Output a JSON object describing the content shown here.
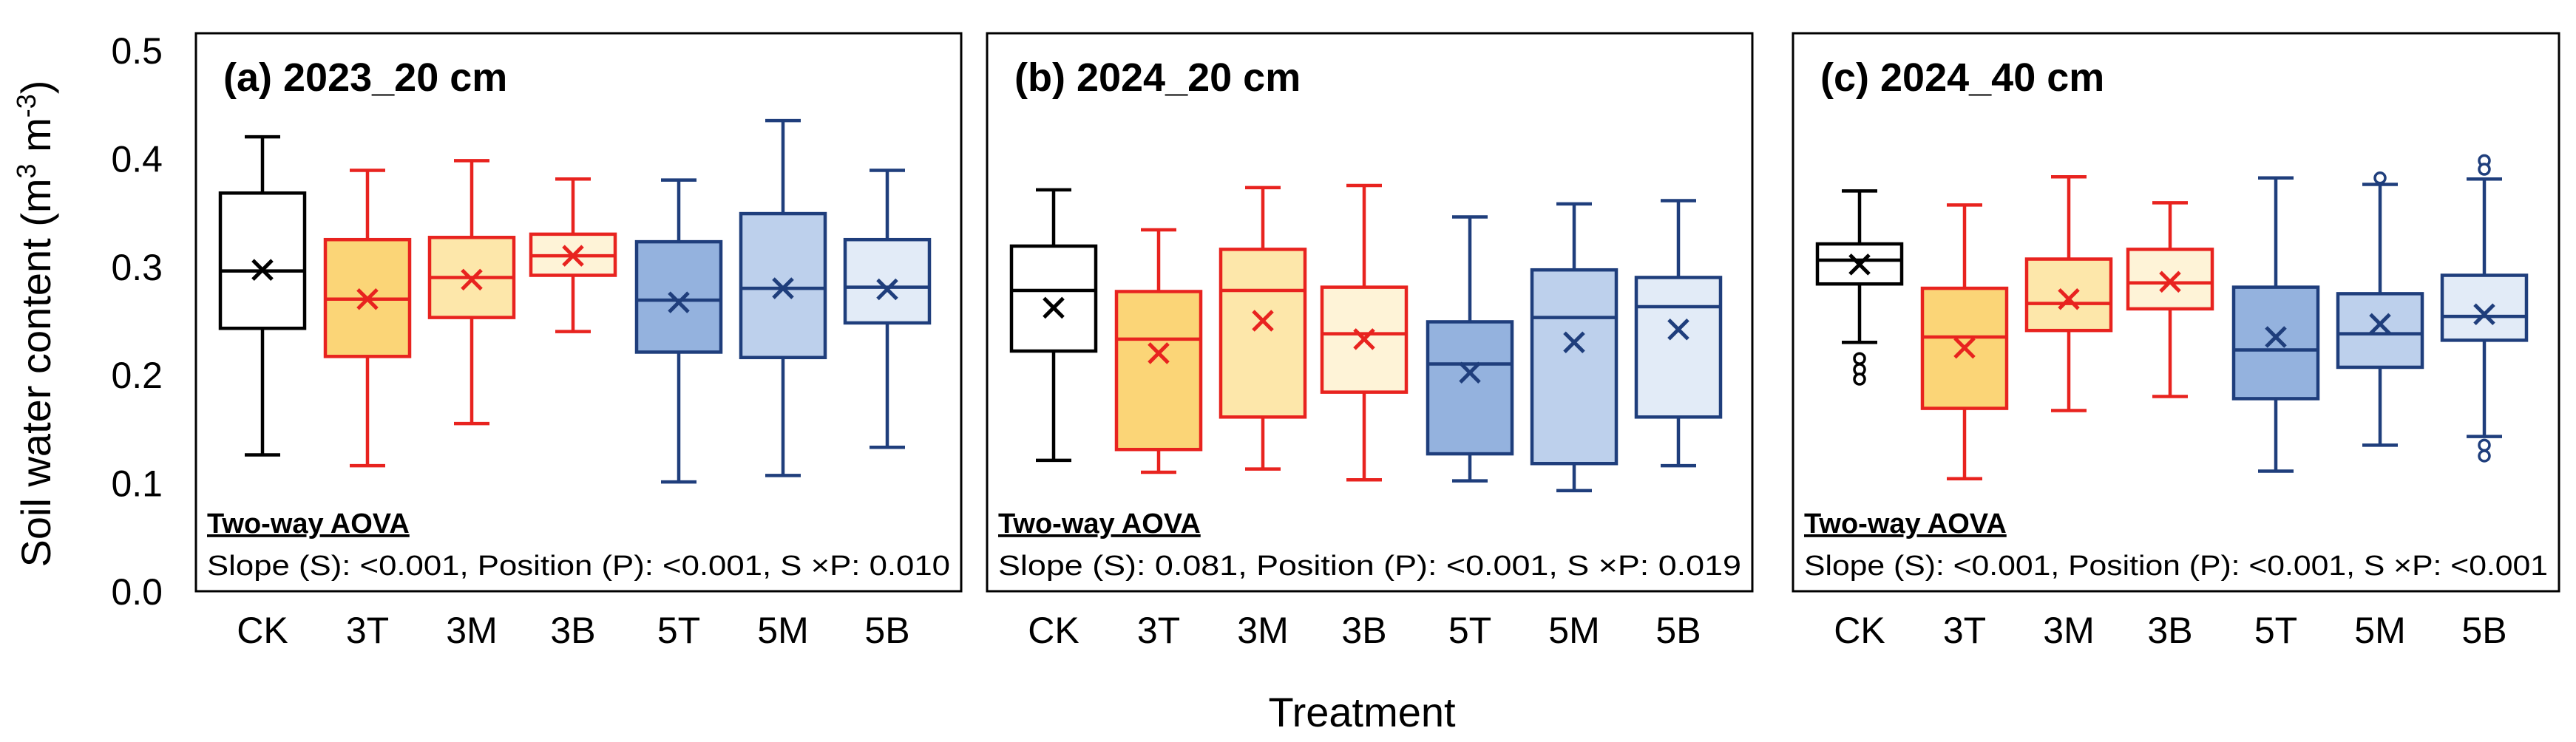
{
  "figure": {
    "y_axis_label": "Soil water content (m",
    "y_axis_unit_sup1": "3",
    "y_axis_unit_mid": " m",
    "y_axis_unit_sup2": "-3",
    "y_axis_unit_close": ")",
    "x_axis_label": "Treatment",
    "y_ticks": [
      "0.0",
      "0.1",
      "0.2",
      "0.3",
      "0.4",
      "0.5"
    ]
  },
  "styles": {
    "CK": {
      "stroke": "#000000",
      "fill": "#ffffff"
    },
    "3T": {
      "stroke": "#e8231f",
      "fill": "#fbd577"
    },
    "3M": {
      "stroke": "#e8231f",
      "fill": "#fde7aa"
    },
    "3B": {
      "stroke": "#e8231f",
      "fill": "#fef3d7"
    },
    "5T": {
      "stroke": "#1f3e7c",
      "fill": "#94b2de"
    },
    "5M": {
      "stroke": "#1f3e7c",
      "fill": "#bdd0ec"
    },
    "5B": {
      "stroke": "#1f3e7c",
      "fill": "#e2ebf7"
    }
  },
  "chart_data": [
    {
      "type": "box",
      "title": "(a) 2023_20 cm",
      "categories": [
        "CK",
        "3T",
        "3M",
        "3B",
        "5T",
        "5M",
        "5B"
      ],
      "ylim": [
        0.0,
        0.5
      ],
      "boxes": [
        {
          "name": "CK",
          "whisker_low": 0.126,
          "q1": 0.243,
          "median": 0.296,
          "q3": 0.368,
          "whisker_high": 0.42,
          "mean": 0.297,
          "outliers": []
        },
        {
          "name": "3T",
          "whisker_low": 0.116,
          "q1": 0.217,
          "median": 0.27,
          "q3": 0.325,
          "whisker_high": 0.389,
          "mean": 0.27,
          "outliers": []
        },
        {
          "name": "3M",
          "whisker_low": 0.155,
          "q1": 0.253,
          "median": 0.29,
          "q3": 0.327,
          "whisker_high": 0.398,
          "mean": 0.288,
          "outliers": []
        },
        {
          "name": "3B",
          "whisker_low": 0.24,
          "q1": 0.292,
          "median": 0.31,
          "q3": 0.33,
          "whisker_high": 0.381,
          "mean": 0.31,
          "outliers": []
        },
        {
          "name": "5T",
          "whisker_low": 0.101,
          "q1": 0.221,
          "median": 0.269,
          "q3": 0.323,
          "whisker_high": 0.38,
          "mean": 0.267,
          "outliers": []
        },
        {
          "name": "5M",
          "whisker_low": 0.107,
          "q1": 0.216,
          "median": 0.28,
          "q3": 0.349,
          "whisker_high": 0.435,
          "mean": 0.28,
          "outliers": []
        },
        {
          "name": "5B",
          "whisker_low": 0.133,
          "q1": 0.248,
          "median": 0.281,
          "q3": 0.325,
          "whisker_high": 0.389,
          "mean": 0.279,
          "outliers": []
        }
      ],
      "anova_title": "Two-way AOVA",
      "anova_text": "Slope (S): <0.001, Position (P): <0.001, S ×P: 0.010"
    },
    {
      "type": "box",
      "title": "(b) 2024_20 cm",
      "categories": [
        "CK",
        "3T",
        "3M",
        "3B",
        "5T",
        "5M",
        "5B"
      ],
      "ylim": [
        0.0,
        0.5
      ],
      "boxes": [
        {
          "name": "CK",
          "whisker_low": 0.121,
          "q1": 0.222,
          "median": 0.278,
          "q3": 0.319,
          "whisker_high": 0.371,
          "mean": 0.262,
          "outliers": []
        },
        {
          "name": "3T",
          "whisker_low": 0.11,
          "q1": 0.131,
          "median": 0.233,
          "q3": 0.277,
          "whisker_high": 0.334,
          "mean": 0.22,
          "outliers": []
        },
        {
          "name": "3M",
          "whisker_low": 0.113,
          "q1": 0.161,
          "median": 0.278,
          "q3": 0.316,
          "whisker_high": 0.373,
          "mean": 0.25,
          "outliers": []
        },
        {
          "name": "3B",
          "whisker_low": 0.103,
          "q1": 0.184,
          "median": 0.238,
          "q3": 0.281,
          "whisker_high": 0.375,
          "mean": 0.233,
          "outliers": []
        },
        {
          "name": "5T",
          "whisker_low": 0.102,
          "q1": 0.127,
          "median": 0.21,
          "q3": 0.249,
          "whisker_high": 0.346,
          "mean": 0.202,
          "outliers": []
        },
        {
          "name": "5M",
          "whisker_low": 0.093,
          "q1": 0.118,
          "median": 0.253,
          "q3": 0.297,
          "whisker_high": 0.358,
          "mean": 0.23,
          "outliers": []
        },
        {
          "name": "5B",
          "whisker_low": 0.116,
          "q1": 0.161,
          "median": 0.263,
          "q3": 0.29,
          "whisker_high": 0.361,
          "mean": 0.242,
          "outliers": []
        }
      ],
      "anova_title": "Two-way AOVA",
      "anova_text": "Slope (S): 0.081, Position (P): <0.001, S ×P: 0.019"
    },
    {
      "type": "box",
      "title": "(c) 2024_40 cm",
      "categories": [
        "CK",
        "3T",
        "3M",
        "3B",
        "5T",
        "5M",
        "5B"
      ],
      "ylim": [
        0.0,
        0.5
      ],
      "boxes": [
        {
          "name": "CK",
          "whisker_low": 0.23,
          "q1": 0.284,
          "median": 0.306,
          "q3": 0.321,
          "whisker_high": 0.37,
          "mean": 0.302,
          "outliers": [
            0.215,
            0.205,
            0.196
          ]
        },
        {
          "name": "3T",
          "whisker_low": 0.104,
          "q1": 0.169,
          "median": 0.235,
          "q3": 0.28,
          "whisker_high": 0.357,
          "mean": 0.225,
          "outliers": []
        },
        {
          "name": "3M",
          "whisker_low": 0.167,
          "q1": 0.241,
          "median": 0.266,
          "q3": 0.307,
          "whisker_high": 0.383,
          "mean": 0.27,
          "outliers": []
        },
        {
          "name": "3B",
          "whisker_low": 0.18,
          "q1": 0.261,
          "median": 0.285,
          "q3": 0.316,
          "whisker_high": 0.359,
          "mean": 0.286,
          "outliers": []
        },
        {
          "name": "5T",
          "whisker_low": 0.111,
          "q1": 0.178,
          "median": 0.223,
          "q3": 0.281,
          "whisker_high": 0.382,
          "mean": 0.235,
          "outliers": []
        },
        {
          "name": "5M",
          "whisker_low": 0.135,
          "q1": 0.207,
          "median": 0.238,
          "q3": 0.275,
          "whisker_high": 0.376,
          "mean": 0.247,
          "outliers": [
            0.382
          ]
        },
        {
          "name": "5B",
          "whisker_low": 0.143,
          "q1": 0.232,
          "median": 0.254,
          "q3": 0.292,
          "whisker_high": 0.381,
          "mean": 0.256,
          "outliers": [
            0.398,
            0.39,
            0.135,
            0.125
          ]
        }
      ],
      "anova_title": "Two-way AOVA",
      "anova_text": "Slope (S): <0.001, Position (P): <0.001, S ×P: <0.001"
    }
  ]
}
